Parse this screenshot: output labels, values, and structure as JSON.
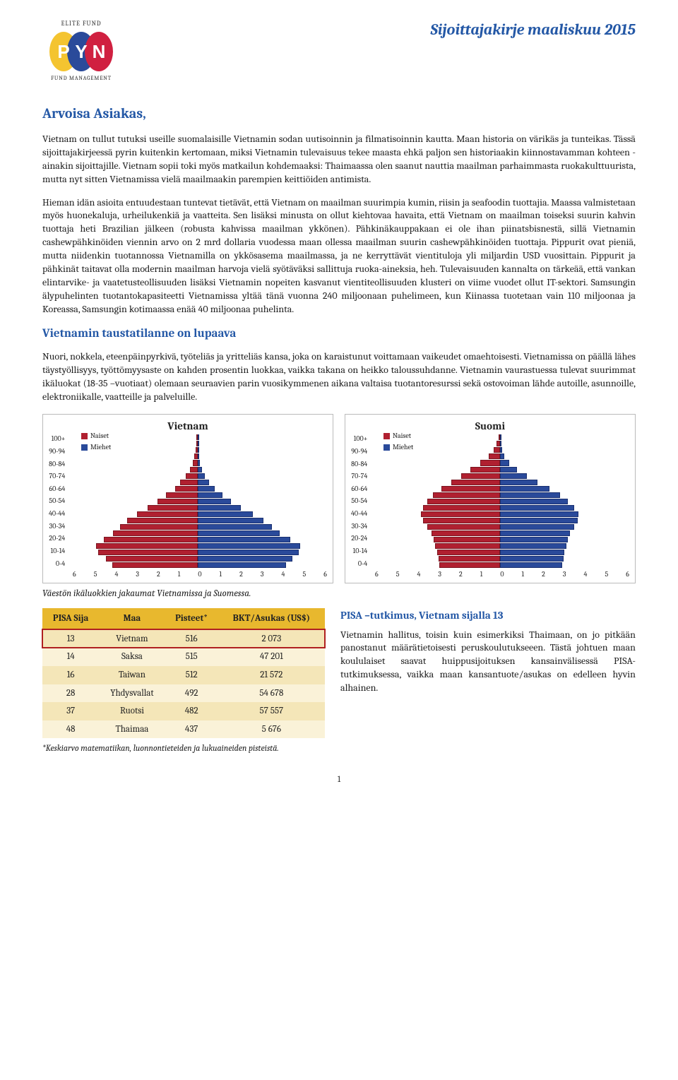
{
  "logo": {
    "top": "ELITE FUND",
    "letters": [
      "P",
      "Y",
      "N"
    ],
    "bottom": "FUND MANAGEMENT",
    "colors": [
      "#f4c430",
      "#2a4a9a",
      "#d02040"
    ]
  },
  "doc_title": "Sijoittajakirje maaliskuu 2015",
  "salutation": "Arvoisa Asiakas,",
  "para1": "Vietnam on tullut tutuksi useille suomalaisille Vietnamin sodan uutisoinnin ja filmatisoinnin kautta. Maan historia on värikäs ja tunteikas. Tässä sijoittajakirjeessä pyrin kuitenkin kertomaan, miksi Vietnamin tulevaisuus tekee maasta ehkä paljon sen historiaakin kiinnostavamman kohteen - ainakin sijoittajille. Vietnam sopii toki myös matkailun kohdemaaksi: Thaimaassa olen saanut nauttia maailman parhaimmasta ruokakulttuurista, mutta nyt sitten Vietnamissa vielä maailmaakin parempien keittiöiden antimista.",
  "para2": "Hieman idän asioita entuudestaan tuntevat tietävät, että Vietnam on maailman suurimpia kumin, riisin ja seafoodin tuottajia. Maassa valmistetaan myös huonekaluja, urheilukenkiä ja vaatteita. Sen lisäksi minusta on ollut kiehtovaa havaita, että Vietnam on maailman toiseksi suurin kahvin tuottaja heti Brazilian jälkeen (robusta kahvissa maailman ykkönen). Pähkinäkauppakaan ei ole ihan piinatsbisnestä, sillä Vietnamin cashewpähkinöiden viennin arvo on 2 mrd dollaria vuodessa maan ollessa maailman suurin cashewpähkinöiden tuottaja. Pippurit ovat pieniä, mutta niidenkin tuotannossa Vietnamilla on ykkösasema maailmassa, ja ne kerryttävät vientituloja yli miljardin USD vuosittain. Pippurit ja pähkinät taitavat olla modernin maailman harvoja vielä syötäväksi sallittuja ruoka-aineksia, heh. Tulevaisuuden kannalta on tärkeää, että vankan elintarvike- ja vaatetusteollisuuden lisäksi Vietnamin nopeiten kasvanut vientiteollisuuden klusteri on viime vuodet ollut IT-sektori. Samsungin älypuhelinten tuotantokapasiteetti Vietnamissa yltää tänä vuonna 240 miljoonaan puhelimeen, kun Kiinassa tuotetaan vain 110 miljoonaa ja Koreassa, Samsungin kotimaassa enää 40 miljoonaa puhelinta.",
  "section_h": "Vietnamin taustatilanne on lupaava",
  "para3": "Nuori, nokkela, eteenpäinpyrkivä, työteliäs ja yritteliäs kansa, joka on karaistunut voittamaan vaikeudet omaehtoisesti. Vietnamissa on päällä lähes täystyöllisyys, työttömyysaste on kahden prosentin luokkaa, vaikka takana on heikko taloussuhdanne. Vietnamin vaurastuessa tulevat suurimmat ikäluokat (18-35 –vuotiaat) olemaan seuraavien parin vuosikymmenen aikana valtaisa tuotantoresurssi sekä ostovoiman lähde autoille, asunnoille, elektroniikalle, vaatteille ja palveluille.",
  "charts": {
    "ylabels": [
      "100+",
      "90-94",
      "80-84",
      "70-74",
      "60-64",
      "50-54",
      "40-44",
      "30-34",
      "20-24",
      "10-14",
      "0-4"
    ],
    "xticks": [
      "6",
      "5",
      "4",
      "3",
      "2",
      "1",
      "0",
      "1",
      "2",
      "3",
      "4",
      "5",
      "6"
    ],
    "xmax": 6,
    "legend": {
      "f": "Naiset",
      "m": "Miehet"
    },
    "colors": {
      "f": "#b02030",
      "m": "#2a4a9a",
      "f_border": "#7a1520",
      "m_border": "#1a3070",
      "box_border": "#bbbbbb"
    },
    "vietnam": {
      "title": "Vietnam",
      "f": [
        0.02,
        0.04,
        0.08,
        0.14,
        0.22,
        0.35,
        0.55,
        0.8,
        1.05,
        1.45,
        1.85,
        2.3,
        2.8,
        3.25,
        3.6,
        3.9,
        4.35,
        4.7,
        4.6,
        4.25,
        3.95
      ],
      "m": [
        0.01,
        0.02,
        0.04,
        0.07,
        0.12,
        0.2,
        0.35,
        0.55,
        0.8,
        1.15,
        1.55,
        2.0,
        2.55,
        3.05,
        3.45,
        3.8,
        4.3,
        4.75,
        4.7,
        4.4,
        4.1
      ]
    },
    "suomi": {
      "title": "Suomi",
      "f": [
        0.05,
        0.14,
        0.28,
        0.5,
        0.9,
        1.35,
        1.8,
        2.25,
        2.7,
        3.1,
        3.35,
        3.55,
        3.65,
        3.55,
        3.35,
        3.15,
        3.05,
        3.0,
        2.9,
        2.85,
        2.8
      ],
      "m": [
        0.01,
        0.04,
        0.1,
        0.22,
        0.45,
        0.8,
        1.25,
        1.75,
        2.3,
        2.8,
        3.15,
        3.45,
        3.65,
        3.6,
        3.45,
        3.25,
        3.15,
        3.1,
        3.0,
        2.95,
        2.9
      ]
    }
  },
  "chart_caption": "Väestön ikäluokkien jakaumat Vietnamissa ja Suomessa.",
  "table": {
    "headers": [
      "PISA Sija",
      "Maa",
      "Pisteet*",
      "BKT/Asukas (US$)"
    ],
    "header_bg": "#e8b82e",
    "row_odd_bg": "#f4e6b8",
    "row_even_bg": "#faf2d8",
    "highlight_border": "#b02020",
    "rows": [
      {
        "sija": "13",
        "maa": "Vietnam",
        "pisteet": "516",
        "bkt": "2 073",
        "hl": true
      },
      {
        "sija": "14",
        "maa": "Saksa",
        "pisteet": "515",
        "bkt": "47 201",
        "hl": false
      },
      {
        "sija": "16",
        "maa": "Taiwan",
        "pisteet": "512",
        "bkt": "21 572",
        "hl": false
      },
      {
        "sija": "28",
        "maa": "Yhdysvallat",
        "pisteet": "492",
        "bkt": "54 678",
        "hl": false
      },
      {
        "sija": "37",
        "maa": "Ruotsi",
        "pisteet": "482",
        "bkt": "57 557",
        "hl": false
      },
      {
        "sija": "48",
        "maa": "Thaimaa",
        "pisteet": "437",
        "bkt": "5 676",
        "hl": false
      }
    ],
    "note": "*Keskiarvo matematiikan, luonnontieteiden ja lukuaineiden pisteistä."
  },
  "pisa_section": {
    "h": "PISA –tutkimus, Vietnam sijalla 13",
    "text": "Vietnamin hallitus, toisin kuin esimerkiksi Thaimaan, on jo pitkään panostanut määrä­tietoisesti peruskoulutukseeen. Tästä johtuen maan koululaiset saavat huippusijoituksen kansain­välisessä PISA-tutkimuksessa, vaikka maan kansantuote/asukas on edelleen hyvin alhainen."
  },
  "page_num": "1"
}
